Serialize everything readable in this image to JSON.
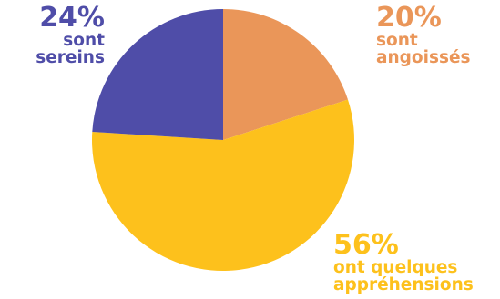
{
  "chart_data": {
    "type": "pie",
    "slices": [
      {
        "value": 20,
        "percent_label": "20%",
        "lines": [
          "sont",
          "angoissés"
        ],
        "color": "#EA9659"
      },
      {
        "value": 56,
        "percent_label": "56%",
        "lines": [
          "ont quelques",
          "appréhensions"
        ],
        "color": "#FDC11C"
      },
      {
        "value": 24,
        "percent_label": "24%",
        "lines": [
          "sont",
          "sereins"
        ],
        "color": "#4F4DA8"
      }
    ],
    "start_angle_deg": 0,
    "direction": "clockwise"
  }
}
